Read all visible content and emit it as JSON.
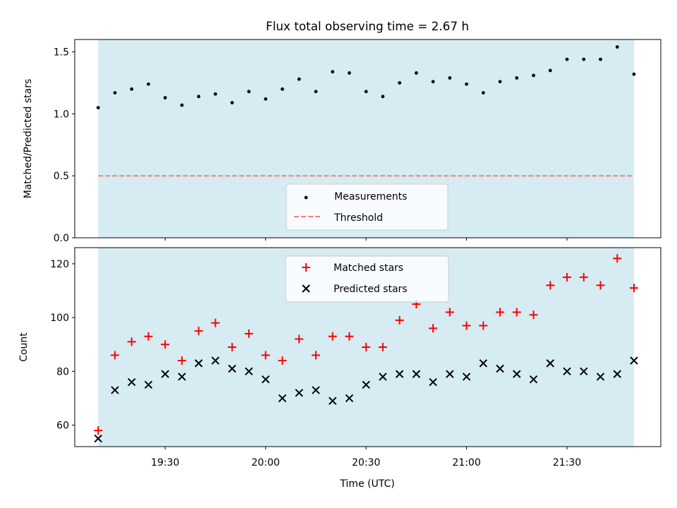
{
  "colors": {
    "band": "#add8e6",
    "threshold": "#f08080",
    "matched": "#ff0000",
    "predicted": "#000000",
    "measurement": "#000000"
  },
  "chart_data": [
    {
      "type": "scatter",
      "title": "Flux total observing time = 2.67 h",
      "xlabel": "",
      "ylabel": "Matched/Predicted stars",
      "xlim": [
        "19:03",
        "21:58"
      ],
      "ylim": [
        0,
        1.6
      ],
      "yticks": [
        0.0,
        0.5,
        1.0,
        1.5
      ],
      "ytick_labels": [
        "0.0",
        "0.5",
        "1.0",
        "1.5"
      ],
      "shaded_span": [
        "19:10",
        "21:50"
      ],
      "legend": {
        "position": "lower center",
        "entries": [
          "Measurements",
          "Threshold"
        ]
      },
      "threshold": {
        "name": "Threshold",
        "value": 0.5,
        "style": "dashed"
      },
      "series": [
        {
          "name": "Measurements",
          "x": [
            "19:10",
            "19:15",
            "19:20",
            "19:25",
            "19:30",
            "19:35",
            "19:40",
            "19:45",
            "19:50",
            "19:55",
            "20:00",
            "20:05",
            "20:10",
            "20:15",
            "20:20",
            "20:25",
            "20:30",
            "20:35",
            "20:40",
            "20:45",
            "20:50",
            "20:55",
            "21:00",
            "21:05",
            "21:10",
            "21:15",
            "21:20",
            "21:25",
            "21:30",
            "21:35",
            "21:40",
            "21:45",
            "21:50"
          ],
          "values": [
            1.05,
            1.17,
            1.2,
            1.24,
            1.13,
            1.07,
            1.14,
            1.16,
            1.09,
            1.18,
            1.12,
            1.2,
            1.28,
            1.18,
            1.34,
            1.33,
            1.18,
            1.14,
            1.25,
            1.33,
            1.26,
            1.29,
            1.24,
            1.17,
            1.26,
            1.29,
            1.31,
            1.35,
            1.44,
            1.44,
            1.44,
            1.54,
            1.32
          ]
        }
      ]
    },
    {
      "type": "scatter",
      "title": "",
      "xlabel": "Time (UTC)",
      "ylabel": "Count",
      "xlim": [
        "19:03",
        "21:58"
      ],
      "ylim": [
        52,
        126
      ],
      "yticks": [
        60,
        80,
        100,
        120
      ],
      "ytick_labels": [
        "60",
        "80",
        "100",
        "120"
      ],
      "xticks": [
        "19:30",
        "20:00",
        "20:30",
        "21:00",
        "21:30"
      ],
      "xtick_labels": [
        "19:30",
        "20:00",
        "20:30",
        "21:00",
        "21:30"
      ],
      "shaded_span": [
        "19:10",
        "21:50"
      ],
      "legend": {
        "position": "upper center",
        "entries": [
          "Matched stars",
          "Predicted stars"
        ]
      },
      "x": [
        "19:10",
        "19:15",
        "19:20",
        "19:25",
        "19:30",
        "19:35",
        "19:40",
        "19:45",
        "19:50",
        "19:55",
        "20:00",
        "20:05",
        "20:10",
        "20:15",
        "20:20",
        "20:25",
        "20:30",
        "20:35",
        "20:40",
        "20:45",
        "20:50",
        "20:55",
        "21:00",
        "21:05",
        "21:10",
        "21:15",
        "21:20",
        "21:25",
        "21:30",
        "21:35",
        "21:40",
        "21:45",
        "21:50"
      ],
      "series": [
        {
          "name": "Matched stars",
          "values": [
            58,
            86,
            91,
            93,
            90,
            84,
            95,
            98,
            89,
            94,
            86,
            84,
            92,
            86,
            93,
            93,
            89,
            89,
            99,
            105,
            96,
            102,
            97,
            97,
            102,
            102,
            101,
            112,
            115,
            115,
            112,
            122,
            111
          ]
        },
        {
          "name": "Predicted stars",
          "values": [
            55,
            73,
            76,
            75,
            79,
            78,
            83,
            84,
            81,
            80,
            77,
            70,
            72,
            73,
            69,
            70,
            75,
            78,
            79,
            79,
            76,
            79,
            78,
            83,
            81,
            79,
            77,
            83,
            80,
            80,
            78,
            79,
            84
          ]
        }
      ]
    }
  ]
}
